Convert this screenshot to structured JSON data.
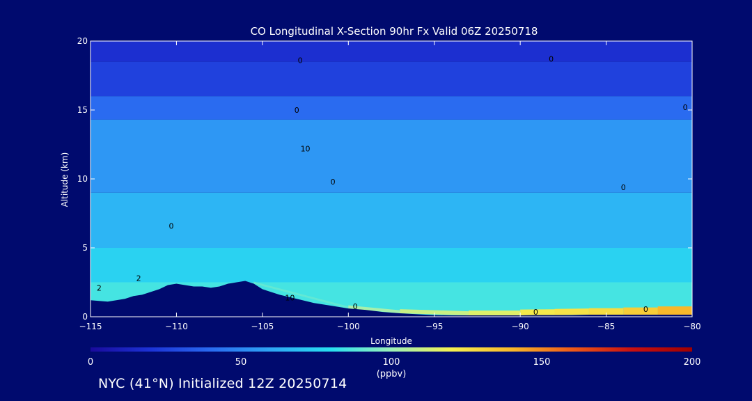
{
  "chart_data": {
    "type": "heatmap",
    "title": "CO Longitudinal X-Section 90hr  Fx Valid 06Z 20250718",
    "xlabel": "Longitude",
    "ylabel": "Altitude (km)",
    "xlim": [
      -115,
      -80
    ],
    "ylim": [
      0,
      20
    ],
    "x_ticks": [
      -115,
      -110,
      -105,
      -100,
      -95,
      -90,
      -85,
      -80
    ],
    "x_tick_labels": [
      "−115",
      "−110",
      "−105",
      "−100",
      "−95",
      "−90",
      "−85",
      "−80"
    ],
    "y_ticks": [
      0,
      5,
      10,
      15,
      20
    ],
    "y_tick_labels": [
      "0",
      "5",
      "10",
      "15",
      "20"
    ],
    "colorbar": {
      "min": 0,
      "max": 200,
      "ticks": [
        0,
        50,
        100,
        150,
        200
      ],
      "tick_labels": [
        "0",
        "50",
        "100",
        "150",
        "200"
      ],
      "unit_label": "(ppbv)",
      "colors": [
        "#1a0a9c",
        "#1c33d6",
        "#2a6bf0",
        "#2fa6f5",
        "#28e0f0",
        "#9cf0b8",
        "#f5f050",
        "#f8b82a",
        "#ee5a18",
        "#c81010",
        "#a00000"
      ]
    },
    "terrain": {
      "longitude": [
        -115,
        -114,
        -113,
        -112.5,
        -112,
        -111,
        -110.5,
        -110,
        -109.5,
        -109,
        -108.5,
        -108,
        -107.5,
        -107,
        -106.5,
        -106,
        -105.5,
        -105,
        -104,
        -103,
        -102,
        -101,
        -100,
        -99,
        -98,
        -97,
        -96,
        -95,
        -94,
        -93,
        -92,
        -91,
        -90,
        -89,
        -88,
        -87,
        -86,
        -85,
        -84,
        -83,
        -82,
        -81,
        -80
      ],
      "altitude_km": [
        1.2,
        1.1,
        1.3,
        1.5,
        1.6,
        2.0,
        2.3,
        2.4,
        2.3,
        2.2,
        2.2,
        2.1,
        2.2,
        2.4,
        2.5,
        2.6,
        2.4,
        2.0,
        1.6,
        1.3,
        1.0,
        0.8,
        0.6,
        0.5,
        0.35,
        0.25,
        0.18,
        0.12,
        0.1,
        0.1,
        0.1,
        0.1,
        0.1,
        0.12,
        0.12,
        0.12,
        0.15,
        0.15,
        0.15,
        0.15,
        0.15,
        0.15,
        0.15
      ]
    },
    "field_bands": [
      {
        "alt_from": 18.5,
        "alt_to": 20,
        "ppbv": 18
      },
      {
        "alt_from": 16,
        "alt_to": 18.5,
        "ppbv": 25
      },
      {
        "alt_from": 14.3,
        "alt_to": 16,
        "ppbv": 40
      },
      {
        "alt_from": 9,
        "alt_to": 14.3,
        "ppbv": 55
      },
      {
        "alt_from": 5,
        "alt_to": 9,
        "ppbv": 65
      },
      {
        "alt_from": 2.5,
        "alt_to": 5,
        "ppbv": 75
      },
      {
        "alt_from": 0,
        "alt_to": 2.5,
        "ppbv": 85
      }
    ],
    "surface_plume": {
      "longitude": [
        -105.5,
        -100,
        -97,
        -93,
        -90,
        -88,
        -86,
        -84,
        -82,
        -80
      ],
      "ppbv": [
        85,
        95,
        110,
        110,
        120,
        125,
        125,
        130,
        135,
        145
      ]
    },
    "contour_labels": [
      {
        "lon": -102.8,
        "alt": 18.6,
        "text": "0"
      },
      {
        "lon": -88.2,
        "alt": 18.7,
        "text": "0"
      },
      {
        "lon": -103.0,
        "alt": 15.0,
        "text": "0"
      },
      {
        "lon": -80.4,
        "alt": 15.2,
        "text": "0"
      },
      {
        "lon": -102.5,
        "alt": 12.2,
        "text": "10"
      },
      {
        "lon": -100.9,
        "alt": 9.8,
        "text": "0"
      },
      {
        "lon": -84.0,
        "alt": 9.4,
        "text": "0"
      },
      {
        "lon": -110.3,
        "alt": 6.6,
        "text": "0"
      },
      {
        "lon": -112.2,
        "alt": 2.8,
        "text": "2"
      },
      {
        "lon": -114.5,
        "alt": 2.1,
        "text": "2"
      },
      {
        "lon": -103.4,
        "alt": 1.4,
        "text": "10"
      },
      {
        "lon": -99.6,
        "alt": 0.75,
        "text": "0"
      },
      {
        "lon": -89.1,
        "alt": 0.35,
        "text": "0"
      },
      {
        "lon": -82.7,
        "alt": 0.55,
        "text": "0"
      }
    ]
  },
  "footer": {
    "caption": "NYC (41°N) Initialized 12Z 20250714"
  }
}
